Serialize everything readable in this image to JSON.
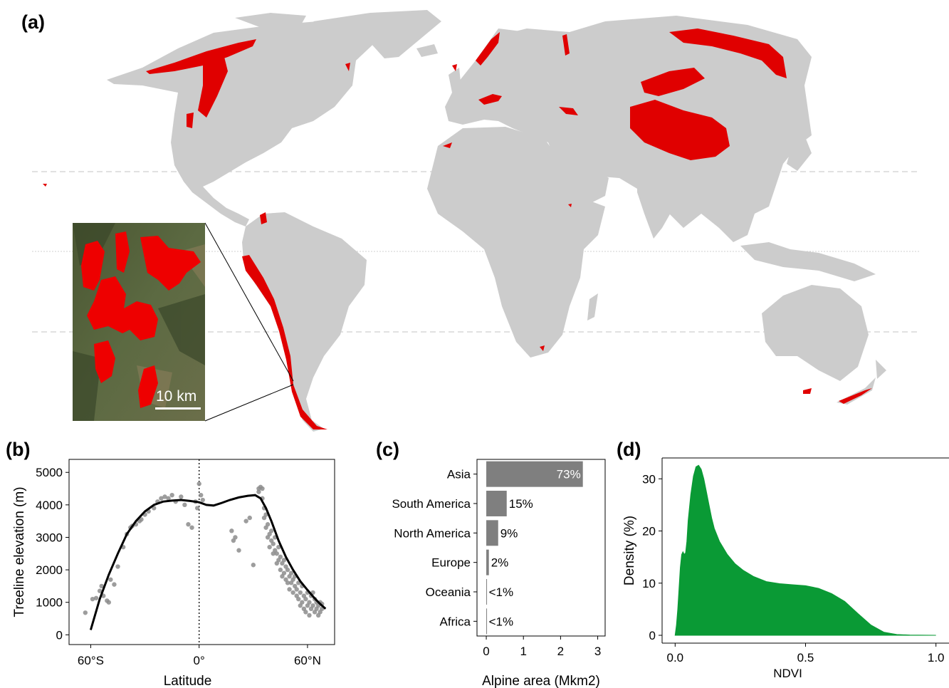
{
  "panels": {
    "a": "(a)",
    "b": "(b)",
    "c": "(c)",
    "d": "(d)"
  },
  "colors": {
    "land": "#cccccc",
    "alpine": "#e00000",
    "bars": "#7f7f7f",
    "density": "#0a9a35",
    "satellite": "#4e5a37"
  },
  "map": {
    "scale_label": "10 km"
  },
  "chart_data": [
    {
      "id": "b",
      "type": "scatter",
      "xlabel": "Latitude",
      "ylabel": "Treeline elevation (m)",
      "xlim": [
        -72,
        75
      ],
      "ylim": [
        -300,
        5400
      ],
      "xticks": [
        {
          "v": -60,
          "label": "60°S"
        },
        {
          "v": 0,
          "label": "0°"
        },
        {
          "v": 60,
          "label": "60°N"
        }
      ],
      "yticks": [
        0,
        1000,
        2000,
        3000,
        4000,
        5000
      ],
      "reference_line_x": 0,
      "points": [
        [
          -63,
          680
        ],
        [
          -59,
          1100
        ],
        [
          -57,
          1130
        ],
        [
          -55,
          1350
        ],
        [
          -54,
          1500
        ],
        [
          -53,
          1200
        ],
        [
          -51,
          1050
        ],
        [
          -50,
          1000
        ],
        [
          -49,
          1700
        ],
        [
          -47,
          1550
        ],
        [
          -45,
          2100
        ],
        [
          -42,
          2700
        ],
        [
          -40,
          3100
        ],
        [
          -38,
          3300
        ],
        [
          -37,
          3350
        ],
        [
          -35,
          3400
        ],
        [
          -33,
          3500
        ],
        [
          -32,
          3550
        ],
        [
          -30,
          3700
        ],
        [
          -28,
          3800
        ],
        [
          -25,
          3900
        ],
        [
          -23,
          4100
        ],
        [
          -21,
          4200
        ],
        [
          -19,
          4250
        ],
        [
          -17,
          4200
        ],
        [
          -15,
          4300
        ],
        [
          -13,
          4100
        ],
        [
          -10,
          4250
        ],
        [
          -8,
          4000
        ],
        [
          -6,
          3400
        ],
        [
          -4,
          3300
        ],
        [
          -2,
          4100
        ],
        [
          -1,
          3900
        ],
        [
          0,
          4650
        ],
        [
          1,
          4300
        ],
        [
          2,
          4150
        ],
        [
          18,
          3200
        ],
        [
          19,
          2900
        ],
        [
          20,
          3000
        ],
        [
          22,
          2600
        ],
        [
          26,
          3500
        ],
        [
          28,
          3600
        ],
        [
          30,
          2150
        ],
        [
          33,
          4500
        ],
        [
          33,
          4400
        ],
        [
          34,
          4550
        ],
        [
          35,
          4500
        ],
        [
          35,
          4200
        ],
        [
          36,
          3900
        ],
        [
          36,
          3600
        ],
        [
          37,
          3700
        ],
        [
          37,
          3300
        ],
        [
          38,
          3400
        ],
        [
          38,
          3000
        ],
        [
          39,
          3100
        ],
        [
          39,
          2700
        ],
        [
          40,
          2900
        ],
        [
          40,
          3200
        ],
        [
          41,
          2500
        ],
        [
          41,
          2800
        ],
        [
          42,
          3000
        ],
        [
          42,
          2600
        ],
        [
          43,
          2200
        ],
        [
          43,
          2500
        ],
        [
          44,
          2700
        ],
        [
          44,
          2300
        ],
        [
          45,
          2000
        ],
        [
          45,
          2400
        ],
        [
          46,
          2200
        ],
        [
          46,
          1800
        ],
        [
          47,
          1900
        ],
        [
          47,
          2300
        ],
        [
          48,
          2100
        ],
        [
          48,
          1700
        ],
        [
          49,
          1600
        ],
        [
          49,
          2000
        ],
        [
          50,
          1400
        ],
        [
          50,
          1800
        ],
        [
          51,
          1600
        ],
        [
          51,
          1900
        ],
        [
          52,
          1300
        ],
        [
          52,
          1700
        ],
        [
          53,
          1500
        ],
        [
          53,
          1800
        ],
        [
          54,
          1200
        ],
        [
          54,
          1400
        ],
        [
          55,
          1600
        ],
        [
          55,
          1100
        ],
        [
          56,
          900
        ],
        [
          56,
          1300
        ],
        [
          57,
          1000
        ],
        [
          57,
          1500
        ],
        [
          58,
          1200
        ],
        [
          58,
          800
        ],
        [
          59,
          1100
        ],
        [
          59,
          700
        ],
        [
          60,
          900
        ],
        [
          60,
          1300
        ],
        [
          61,
          1000
        ],
        [
          61,
          600
        ],
        [
          62,
          800
        ],
        [
          62,
          1200
        ],
        [
          63,
          900
        ],
        [
          63,
          1300
        ],
        [
          64,
          700
        ],
        [
          64,
          1100
        ],
        [
          65,
          800
        ],
        [
          65,
          1000
        ],
        [
          66,
          600
        ],
        [
          66,
          900
        ],
        [
          67,
          1000
        ],
        [
          67,
          700
        ],
        [
          68,
          800
        ],
        [
          68,
          950
        ]
      ],
      "smooth_line": [
        [
          -60,
          150
        ],
        [
          -55,
          1100
        ],
        [
          -50,
          1850
        ],
        [
          -45,
          2500
        ],
        [
          -40,
          3100
        ],
        [
          -35,
          3500
        ],
        [
          -30,
          3800
        ],
        [
          -25,
          4000
        ],
        [
          -20,
          4100
        ],
        [
          -15,
          4130
        ],
        [
          -10,
          4150
        ],
        [
          -5,
          4120
        ],
        [
          0,
          4080
        ],
        [
          4,
          4000
        ],
        [
          8,
          3980
        ],
        [
          12,
          4050
        ],
        [
          17,
          4150
        ],
        [
          22,
          4230
        ],
        [
          27,
          4280
        ],
        [
          31,
          4300
        ],
        [
          34,
          4200
        ],
        [
          37,
          3900
        ],
        [
          40,
          3500
        ],
        [
          44,
          2900
        ],
        [
          48,
          2400
        ],
        [
          52,
          2000
        ],
        [
          56,
          1650
        ],
        [
          60,
          1380
        ],
        [
          64,
          1120
        ],
        [
          67,
          950
        ],
        [
          70,
          800
        ]
      ]
    },
    {
      "id": "c",
      "type": "bar",
      "orientation": "horizontal",
      "xlabel": "Alpine area (Mkm2)",
      "xlim": [
        -0.25,
        3.2
      ],
      "xticks": [
        0,
        1,
        2,
        3
      ],
      "categories": [
        "Asia",
        "South America",
        "North America",
        "Europe",
        "Oceania",
        "Africa"
      ],
      "values": [
        2.6,
        0.55,
        0.32,
        0.07,
        0.01,
        0.01
      ],
      "labels": [
        "73%",
        "15%",
        "9%",
        "2%",
        "<1%",
        "<1%"
      ]
    },
    {
      "id": "d",
      "type": "area",
      "xlabel": "NDVI",
      "ylabel": "Density (%)",
      "xlim": [
        -0.05,
        1.05
      ],
      "ylim": [
        -1.5,
        34
      ],
      "xticks": [
        {
          "v": 0.0,
          "label": "0.0"
        },
        {
          "v": 0.5,
          "label": "0.5"
        },
        {
          "v": 1.0,
          "label": "1.0"
        }
      ],
      "yticks": [
        0,
        10,
        20,
        30
      ],
      "x": [
        0.0,
        0.005,
        0.01,
        0.015,
        0.02,
        0.025,
        0.03,
        0.035,
        0.04,
        0.045,
        0.05,
        0.06,
        0.07,
        0.08,
        0.09,
        0.1,
        0.11,
        0.12,
        0.13,
        0.14,
        0.15,
        0.17,
        0.2,
        0.23,
        0.26,
        0.3,
        0.35,
        0.4,
        0.45,
        0.5,
        0.55,
        0.6,
        0.65,
        0.7,
        0.75,
        0.8,
        0.85,
        0.9,
        1.0
      ],
      "y": [
        0,
        2,
        5,
        9,
        13,
        15.5,
        16,
        15.5,
        15.8,
        18,
        22,
        27,
        30.5,
        32.3,
        32.6,
        31.8,
        30,
        27.5,
        25,
        22.5,
        20.5,
        18,
        15.5,
        13.7,
        12.5,
        11.3,
        10.3,
        9.9,
        9.7,
        9.5,
        9.0,
        8.0,
        6.5,
        4.2,
        2.0,
        0.6,
        0.15,
        0.05,
        0
      ]
    }
  ]
}
